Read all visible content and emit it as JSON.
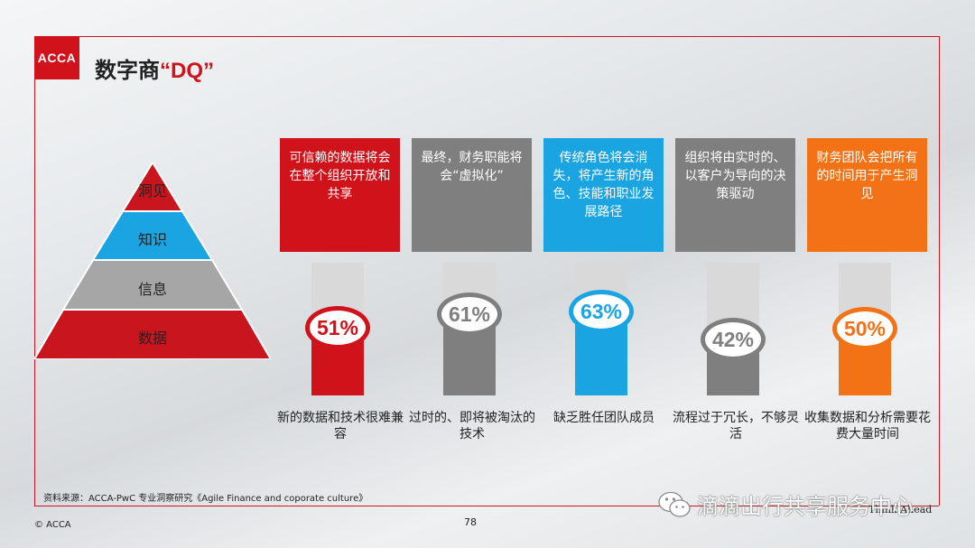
{
  "header": {
    "logo_text": "ACCA",
    "title_prefix": "数字商",
    "title_highlight": "“DQ”"
  },
  "pyramid": [
    {
      "label": "洞见",
      "color": "#c9151e"
    },
    {
      "label": "知识",
      "color": "#1ba4e2"
    },
    {
      "label": "信息",
      "color": "#a6a6a6"
    },
    {
      "label": "数据",
      "color": "#c9151e"
    }
  ],
  "columns": [
    {
      "card_text": "可信赖的数据将会在整个组织开放和共享",
      "color": "#d0121b",
      "percent": 51,
      "percent_label": "51%",
      "caption": "新的数据和技术很难兼容"
    },
    {
      "card_text": "最终，财务职能将会“虚拟化”",
      "color": "#7f7f7f",
      "percent": 61,
      "percent_label": "61%",
      "caption": "过时的、即将被淘汰的技术"
    },
    {
      "card_text": "传统角色将会消失，将产生新的角色、技能和职业发展路径",
      "color": "#1ba4e2",
      "percent": 63,
      "percent_label": "63%",
      "caption": "缺乏胜任团队成员"
    },
    {
      "card_text": "组织将由实时的、以客户为导向的决策驱动",
      "color": "#7f7f7f",
      "percent": 42,
      "percent_label": "42%",
      "caption": "流程过于冗长，不够灵活"
    },
    {
      "card_text": "财务团队会把所有的时间用于产生洞见",
      "color": "#f47216",
      "percent": 50,
      "percent_label": "50%",
      "caption": "收集数据和分析需要花费大量时间"
    }
  ],
  "footer": {
    "source": "资料来源：ACCA-PwC 专业洞察研究《Agile Finance and coporate culture》",
    "copyright": "© ACCA",
    "page_number": "78",
    "tag": "Think Ahead",
    "watermark": "滴滴出行共享服务中心"
  }
}
